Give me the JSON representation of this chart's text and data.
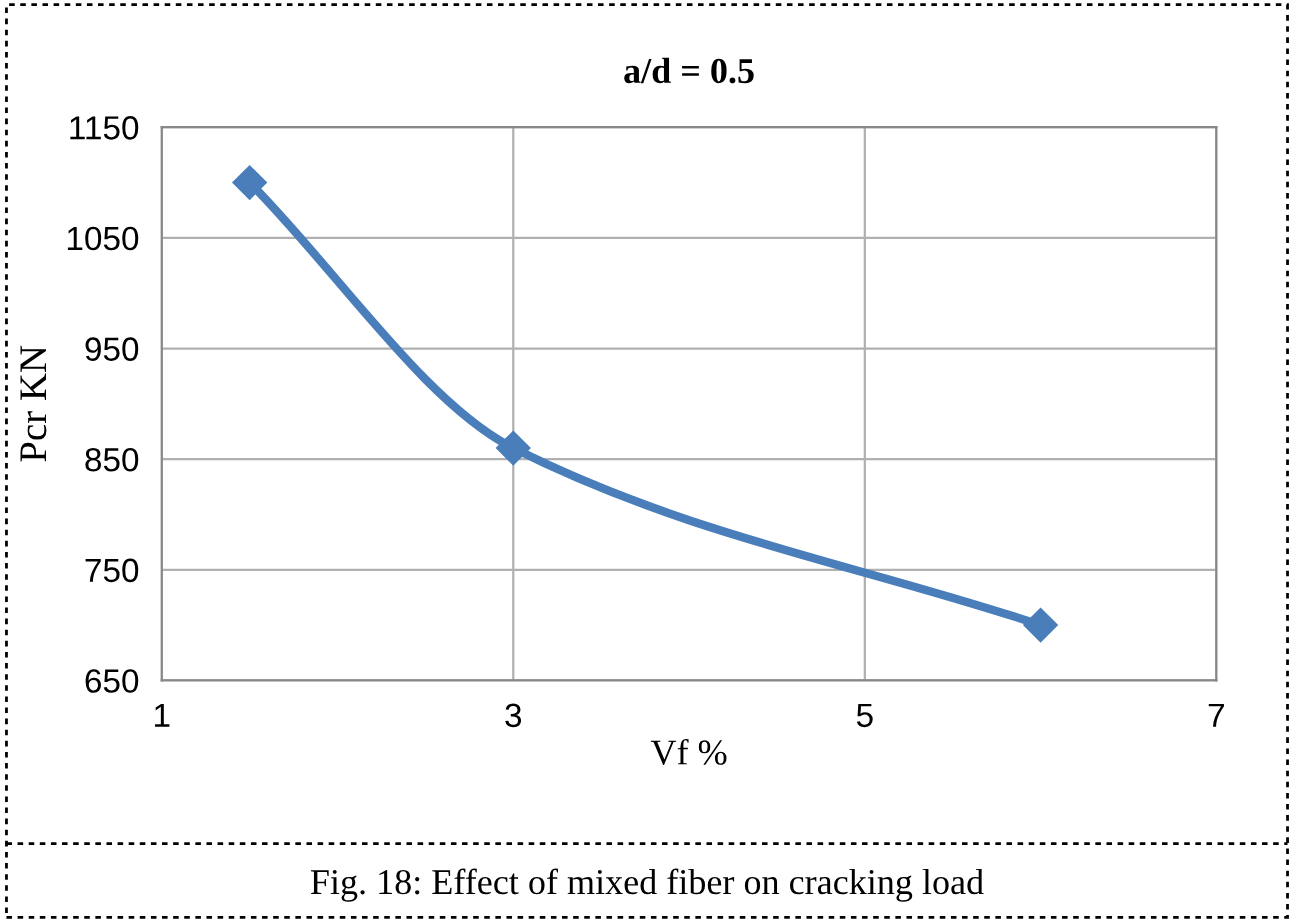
{
  "chart_data": {
    "type": "line",
    "title": "a/d = 0.5",
    "xlabel": "Vf %",
    "ylabel": "Pcr KN",
    "x": [
      1.5,
      3,
      6
    ],
    "series": [
      {
        "color": "#4a7ebb",
        "values": [
          1100,
          860,
          700
        ]
      }
    ],
    "xlim": [
      1,
      7
    ],
    "xticks": [
      1,
      3,
      5,
      7
    ],
    "ylim": [
      650,
      1150
    ],
    "yticks": [
      650,
      750,
      850,
      950,
      1050,
      1150
    ],
    "grid": true,
    "marker": "diamond",
    "line_style": "solid",
    "legend": false,
    "annotations": [
      "Fig. 18: Effect of mixed fiber on cracking load"
    ]
  }
}
